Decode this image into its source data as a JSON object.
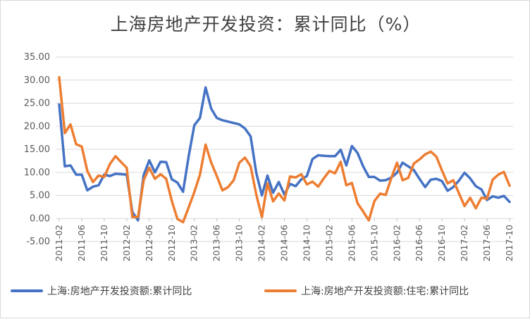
{
  "chart_data": {
    "type": "line",
    "title": "上海房地产开发投资：累计同比（%）",
    "ylim": [
      -5,
      35
    ],
    "yticks": [
      "-5.00",
      "0.00",
      "5.00",
      "10.00",
      "15.00",
      "20.00",
      "25.00",
      "30.00",
      "35.00"
    ],
    "xticks": [
      "2011-02",
      "2011-06",
      "2011-10",
      "2012-02",
      "2012-06",
      "2012-10",
      "2013-02",
      "2013-06",
      "2013-10",
      "2014-02",
      "2014-06",
      "2014-10",
      "2015-02",
      "2015-06",
      "2015-10",
      "2016-02",
      "2016-06",
      "2016-10",
      "2017-02",
      "2017-06",
      "2017-10"
    ],
    "grid": "horizontal",
    "legend_position": "bottom",
    "series": [
      {
        "name": "上海:房地产开发投资额:累计同比",
        "color": "#4472C4",
        "values": [
          24.7,
          11.3,
          11.5,
          9.5,
          9.5,
          6.1,
          6.9,
          7.2,
          9.5,
          9.2,
          9.7,
          9.6,
          9.5,
          1.4,
          -0.4,
          9.4,
          12.6,
          10.0,
          12.3,
          12.2,
          8.5,
          7.8,
          5.8,
          13.5,
          20.2,
          21.8,
          28.4,
          23.8,
          21.8,
          21.3,
          21.0,
          20.7,
          20.4,
          19.5,
          17.8,
          9.9,
          5.0,
          9.3,
          5.6,
          7.9,
          5.2,
          7.5,
          7.0,
          8.5,
          9.2,
          12.9,
          13.7,
          13.6,
          13.5,
          13.5,
          14.9,
          11.5,
          15.7,
          14.2,
          11.3,
          9.0,
          9.0,
          8.2,
          8.3,
          8.9,
          9.9,
          12.1,
          11.3,
          10.5,
          8.6,
          6.8,
          8.4,
          8.6,
          8.1,
          6.0,
          6.8,
          8.2,
          9.9,
          8.7,
          7.0,
          6.3,
          4.0,
          4.8,
          4.5,
          4.9,
          3.6
        ]
      },
      {
        "name": "上海:房地产开发投资额:住宅:累计同比",
        "color": "#ED7D31",
        "values": [
          30.6,
          18.5,
          20.4,
          16.1,
          15.6,
          10.3,
          7.9,
          9.3,
          9.0,
          11.8,
          13.5,
          12.2,
          11.0,
          0.3,
          0.3,
          8.3,
          11.0,
          8.6,
          9.6,
          8.6,
          3.8,
          -0.1,
          -0.8,
          2.4,
          5.7,
          9.5,
          16.0,
          12.1,
          9.2,
          6.1,
          6.8,
          8.3,
          12.1,
          13.2,
          11.3,
          5.2,
          0.3,
          7.6,
          3.7,
          5.4,
          3.9,
          9.1,
          8.9,
          9.6,
          7.4,
          8.0,
          6.9,
          8.7,
          10.3,
          9.8,
          12.3,
          7.2,
          7.7,
          3.3,
          1.5,
          -0.4,
          3.8,
          5.4,
          5.1,
          8.8,
          12.1,
          8.3,
          8.8,
          11.9,
          12.8,
          13.9,
          14.5,
          13.4,
          10.4,
          7.6,
          8.3,
          5.5,
          2.7,
          4.5,
          2.2,
          4.5,
          4.3,
          8.4,
          9.5,
          10.1,
          7.1
        ]
      }
    ]
  }
}
